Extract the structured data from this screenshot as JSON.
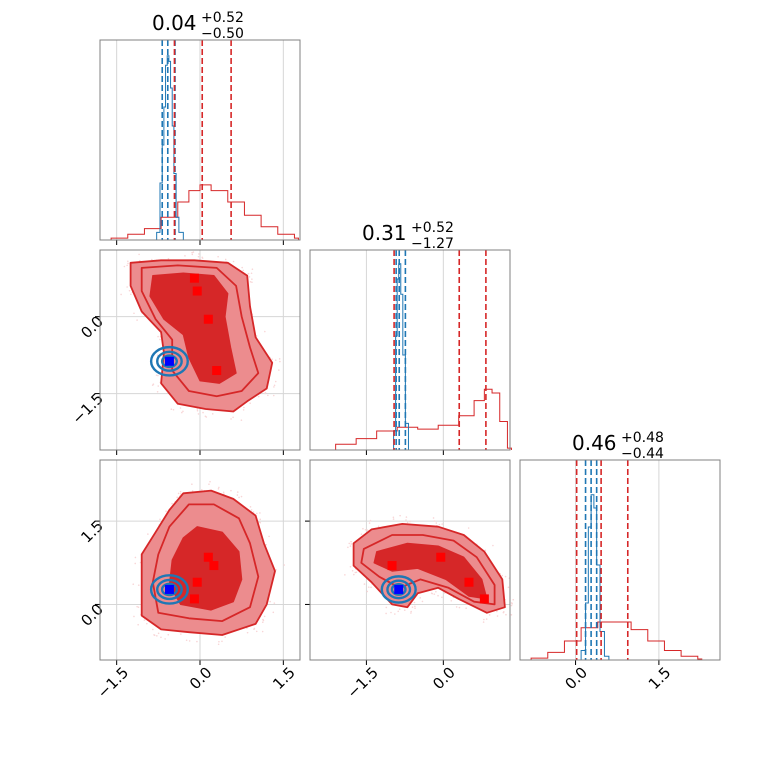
{
  "chart_data": {
    "type": "corner",
    "colors": {
      "posterior_a": "#d62728",
      "posterior_a_mid": "#ec8c8e",
      "posterior_a_light": "#f8d6d7",
      "posterior_b": "#1f77b4",
      "marker_square": "#ff0000",
      "marker_truth": "#0000ff",
      "grid": "#d6d6d6"
    },
    "grid": true,
    "titles": [
      {
        "median": "0.04",
        "upper": "+0.52",
        "lower": "−0.50"
      },
      {
        "median": "0.31",
        "upper": "+0.52",
        "lower": "−1.27"
      },
      {
        "median": "0.46",
        "upper": "+0.48",
        "lower": "−0.44"
      }
    ],
    "axes": {
      "x0": {
        "range": [
          -1.8,
          1.8
        ],
        "ticks": [
          -1.5,
          0.0,
          1.5
        ],
        "tick_labels": [
          "−1.5",
          "0.0",
          "1.5"
        ]
      },
      "x1": {
        "range": [
          -2.6,
          1.3
        ],
        "ticks": [
          -1.5,
          0.0
        ],
        "tick_labels": [
          "−1.5",
          "0.0"
        ]
      },
      "x2": {
        "range": [
          -1.0,
          2.6
        ],
        "ticks": [
          0.0,
          1.5
        ],
        "tick_labels": [
          "0.0",
          "1.5"
        ]
      },
      "y1": {
        "range": [
          -2.6,
          1.3
        ],
        "ticks": [
          0.0,
          -1.5
        ],
        "tick_labels": [
          "0.0",
          "−1.5"
        ]
      },
      "y2": {
        "range": [
          -1.0,
          2.6
        ],
        "ticks": [
          1.5,
          0.0
        ],
        "tick_labels": [
          "1.5",
          "0.0"
        ]
      }
    },
    "quantile_lines": {
      "red": [
        [
          -0.46,
          0.04,
          0.56
        ],
        [
          -0.96,
          0.31,
          0.83
        ],
        [
          0.02,
          0.46,
          0.94
        ]
      ],
      "blue": [
        [
          -0.68,
          -0.58,
          -0.45
        ],
        [
          -0.92,
          -0.86,
          -0.74
        ],
        [
          0.18,
          0.28,
          0.38
        ]
      ]
    },
    "truth": [
      -0.55,
      -0.87,
      0.27
    ],
    "markers": {
      "x0_x1": [
        [
          -0.1,
          0.75
        ],
        [
          -0.05,
          0.5
        ],
        [
          0.15,
          -0.05
        ],
        [
          0.3,
          -1.05
        ]
      ],
      "x0_x2": [
        [
          0.15,
          0.85
        ],
        [
          0.25,
          0.7
        ],
        [
          -0.05,
          0.4
        ],
        [
          -0.1,
          0.1
        ]
      ],
      "x1_x2": [
        [
          -1.0,
          0.7
        ],
        [
          -0.05,
          0.85
        ],
        [
          0.5,
          0.4
        ],
        [
          0.8,
          0.1
        ]
      ]
    },
    "marginals": {
      "x0": {
        "red": [
          [
            -1.6,
            0.01
          ],
          [
            -1.3,
            0.03
          ],
          [
            -1.0,
            0.06
          ],
          [
            -0.7,
            0.12
          ],
          [
            -0.4,
            0.2
          ],
          [
            -0.2,
            0.26
          ],
          [
            0.0,
            0.29
          ],
          [
            0.2,
            0.26
          ],
          [
            0.5,
            0.2
          ],
          [
            0.8,
            0.13
          ],
          [
            1.1,
            0.07
          ],
          [
            1.4,
            0.03
          ],
          [
            1.7,
            0.01
          ]
        ],
        "blue": [
          [
            -0.9,
            0.0
          ],
          [
            -0.78,
            0.04
          ],
          [
            -0.72,
            0.3
          ],
          [
            -0.68,
            0.5
          ],
          [
            -0.65,
            0.7
          ],
          [
            -0.62,
            0.92
          ],
          [
            -0.59,
            0.97
          ],
          [
            -0.56,
            0.94
          ],
          [
            -0.53,
            0.8
          ],
          [
            -0.5,
            0.6
          ],
          [
            -0.47,
            0.35
          ],
          [
            -0.43,
            0.12
          ],
          [
            -0.38,
            0.04
          ],
          [
            -0.3,
            0.0
          ]
        ]
      },
      "x1": {
        "red": [
          [
            -2.4,
            0.0
          ],
          [
            -2.1,
            0.03
          ],
          [
            -1.7,
            0.06
          ],
          [
            -1.3,
            0.1
          ],
          [
            -0.9,
            0.12
          ],
          [
            -0.5,
            0.11
          ],
          [
            -0.1,
            0.13
          ],
          [
            0.3,
            0.18
          ],
          [
            0.6,
            0.26
          ],
          [
            0.8,
            0.32
          ],
          [
            0.95,
            0.3
          ],
          [
            1.1,
            0.15
          ],
          [
            1.25,
            0.01
          ]
        ],
        "blue": [
          [
            -1.05,
            0.0
          ],
          [
            -0.97,
            0.1
          ],
          [
            -0.93,
            0.6
          ],
          [
            -0.9,
            0.9
          ],
          [
            -0.87,
            0.98
          ],
          [
            -0.83,
            0.82
          ],
          [
            -0.79,
            0.5
          ],
          [
            -0.74,
            0.14
          ],
          [
            -0.68,
            0.0
          ]
        ]
      },
      "x2": {
        "red": [
          [
            -0.8,
            0.01
          ],
          [
            -0.5,
            0.04
          ],
          [
            -0.2,
            0.1
          ],
          [
            0.1,
            0.17
          ],
          [
            0.4,
            0.2
          ],
          [
            0.7,
            0.2
          ],
          [
            1.0,
            0.16
          ],
          [
            1.3,
            0.1
          ],
          [
            1.6,
            0.05
          ],
          [
            1.9,
            0.02
          ],
          [
            2.2,
            0.005
          ]
        ],
        "blue": [
          [
            0.0,
            0.0
          ],
          [
            0.1,
            0.05
          ],
          [
            0.18,
            0.3
          ],
          [
            0.23,
            0.7
          ],
          [
            0.28,
            0.87
          ],
          [
            0.33,
            0.8
          ],
          [
            0.38,
            0.5
          ],
          [
            0.44,
            0.15
          ],
          [
            0.52,
            0.02
          ],
          [
            0.6,
            0.0
          ]
        ]
      }
    },
    "contours": {
      "x0_x1": {
        "outer": [
          [
            -1.25,
            1.05
          ],
          [
            -0.7,
            1.1
          ],
          [
            -0.1,
            1.1
          ],
          [
            0.5,
            1.05
          ],
          [
            0.85,
            0.8
          ],
          [
            0.9,
            0.2
          ],
          [
            1.0,
            -0.4
          ],
          [
            1.3,
            -0.9
          ],
          [
            1.2,
            -1.4
          ],
          [
            0.85,
            -1.65
          ],
          [
            0.6,
            -1.85
          ],
          [
            0.1,
            -1.8
          ],
          [
            -0.4,
            -1.7
          ],
          [
            -0.7,
            -1.3
          ],
          [
            -0.65,
            -0.7
          ],
          [
            -0.7,
            -0.3
          ],
          [
            -1.05,
            0.1
          ],
          [
            -1.25,
            0.6
          ]
        ],
        "mid": [
          [
            -1.05,
            0.95
          ],
          [
            -0.4,
            1.0
          ],
          [
            0.3,
            0.95
          ],
          [
            0.65,
            0.6
          ],
          [
            0.75,
            0.0
          ],
          [
            0.9,
            -0.6
          ],
          [
            1.05,
            -1.1
          ],
          [
            0.75,
            -1.45
          ],
          [
            0.3,
            -1.55
          ],
          [
            -0.2,
            -1.45
          ],
          [
            -0.5,
            -1.05
          ],
          [
            -0.5,
            -0.45
          ],
          [
            -0.8,
            -0.05
          ],
          [
            -1.05,
            0.5
          ]
        ],
        "inner": [
          [
            -0.85,
            0.8
          ],
          [
            -0.3,
            0.85
          ],
          [
            0.25,
            0.8
          ],
          [
            0.5,
            0.45
          ],
          [
            0.45,
            0.0
          ],
          [
            0.55,
            -0.6
          ],
          [
            0.65,
            -1.1
          ],
          [
            0.35,
            -1.3
          ],
          [
            0.0,
            -1.25
          ],
          [
            -0.2,
            -0.8
          ],
          [
            -0.3,
            -0.35
          ],
          [
            -0.65,
            -0.05
          ],
          [
            -0.9,
            0.4
          ]
        ]
      },
      "x0_x2": {
        "outer": [
          [
            -0.3,
            2.0
          ],
          [
            0.2,
            2.05
          ],
          [
            0.6,
            1.9
          ],
          [
            1.0,
            1.6
          ],
          [
            1.15,
            1.1
          ],
          [
            1.35,
            0.6
          ],
          [
            1.2,
            0.0
          ],
          [
            1.0,
            -0.35
          ],
          [
            0.4,
            -0.55
          ],
          [
            -0.2,
            -0.5
          ],
          [
            -0.7,
            -0.45
          ],
          [
            -1.05,
            -0.2
          ],
          [
            -1.05,
            0.4
          ],
          [
            -1.05,
            0.9
          ],
          [
            -0.8,
            1.3
          ],
          [
            -0.55,
            1.7
          ]
        ],
        "mid": [
          [
            -0.2,
            1.8
          ],
          [
            0.25,
            1.8
          ],
          [
            0.7,
            1.55
          ],
          [
            0.9,
            1.1
          ],
          [
            1.05,
            0.5
          ],
          [
            0.9,
            -0.05
          ],
          [
            0.4,
            -0.3
          ],
          [
            -0.2,
            -0.25
          ],
          [
            -0.75,
            -0.15
          ],
          [
            -0.85,
            0.4
          ],
          [
            -0.75,
            0.9
          ],
          [
            -0.55,
            1.4
          ]
        ],
        "inner": [
          [
            -0.05,
            1.4
          ],
          [
            0.4,
            1.3
          ],
          [
            0.7,
            0.95
          ],
          [
            0.75,
            0.45
          ],
          [
            0.6,
            0.05
          ],
          [
            0.2,
            -0.1
          ],
          [
            -0.35,
            0.0
          ],
          [
            -0.55,
            0.35
          ],
          [
            -0.5,
            0.8
          ],
          [
            -0.3,
            1.2
          ]
        ]
      },
      "x1_x2": {
        "outer": [
          [
            -1.75,
            1.1
          ],
          [
            -1.4,
            1.35
          ],
          [
            -0.8,
            1.45
          ],
          [
            -0.1,
            1.4
          ],
          [
            0.4,
            1.25
          ],
          [
            0.8,
            0.95
          ],
          [
            1.15,
            0.45
          ],
          [
            1.2,
            -0.05
          ],
          [
            0.85,
            -0.15
          ],
          [
            0.3,
            0.1
          ],
          [
            -0.1,
            0.3
          ],
          [
            -0.5,
            0.2
          ],
          [
            -0.7,
            -0.05
          ],
          [
            -1.0,
            0.0
          ],
          [
            -1.4,
            0.4
          ],
          [
            -1.75,
            0.7
          ]
        ],
        "mid": [
          [
            -1.55,
            1.0
          ],
          [
            -1.0,
            1.25
          ],
          [
            -0.4,
            1.25
          ],
          [
            0.2,
            1.15
          ],
          [
            0.65,
            0.85
          ],
          [
            1.0,
            0.35
          ],
          [
            1.0,
            0.0
          ],
          [
            0.6,
            0.05
          ],
          [
            0.1,
            0.3
          ],
          [
            -0.45,
            0.45
          ],
          [
            -0.85,
            0.3
          ],
          [
            -1.25,
            0.5
          ],
          [
            -1.6,
            0.75
          ]
        ],
        "inner": [
          [
            -1.3,
            0.95
          ],
          [
            -0.7,
            1.1
          ],
          [
            -0.1,
            1.05
          ],
          [
            0.4,
            0.85
          ],
          [
            0.75,
            0.45
          ],
          [
            0.85,
            0.1
          ],
          [
            0.5,
            0.15
          ],
          [
            0.05,
            0.45
          ],
          [
            -0.5,
            0.65
          ],
          [
            -1.0,
            0.6
          ],
          [
            -1.35,
            0.75
          ]
        ]
      },
      "blue_radius": [
        0.12,
        0.2,
        0.3
      ]
    }
  }
}
